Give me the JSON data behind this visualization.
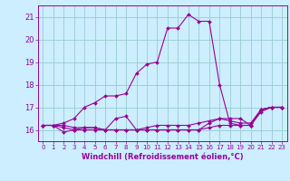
{
  "xlabel": "Windchill (Refroidissement éolien,°C)",
  "background_color": "#cceeff",
  "grid_color": "#99cccc",
  "line_color": "#990099",
  "x_ticks": [
    0,
    1,
    2,
    3,
    4,
    5,
    6,
    7,
    8,
    9,
    10,
    11,
    12,
    13,
    14,
    15,
    16,
    17,
    18,
    19,
    20,
    21,
    22,
    23
  ],
  "y_ticks": [
    16,
    17,
    18,
    19,
    20,
    21
  ],
  "ylim": [
    15.5,
    21.5
  ],
  "xlim": [
    -0.5,
    23.5
  ],
  "series": [
    [
      16.2,
      16.2,
      15.9,
      16.0,
      16.0,
      16.0,
      16.0,
      16.5,
      16.6,
      16.0,
      16.0,
      16.0,
      16.0,
      16.0,
      16.0,
      16.0,
      16.1,
      16.2,
      16.2,
      16.2,
      16.2,
      16.9,
      17.0,
      17.0
    ],
    [
      16.2,
      16.2,
      16.1,
      16.0,
      16.1,
      16.1,
      16.0,
      16.0,
      16.0,
      16.0,
      16.0,
      16.0,
      16.0,
      16.0,
      16.0,
      16.0,
      16.3,
      16.5,
      16.5,
      16.5,
      16.2,
      16.8,
      17.0,
      17.0
    ],
    [
      16.2,
      16.2,
      16.2,
      16.1,
      16.1,
      16.1,
      16.0,
      16.0,
      16.0,
      16.0,
      16.1,
      16.2,
      16.2,
      16.2,
      16.2,
      16.3,
      16.4,
      16.5,
      16.4,
      16.3,
      16.3,
      16.9,
      17.0,
      17.0
    ],
    [
      16.2,
      16.2,
      16.3,
      16.5,
      17.0,
      17.2,
      17.5,
      17.5,
      17.6,
      18.5,
      18.9,
      19.0,
      20.5,
      20.5,
      21.1,
      20.8,
      20.8,
      18.0,
      16.3,
      16.2,
      16.2,
      16.9,
      17.0,
      17.0
    ]
  ]
}
